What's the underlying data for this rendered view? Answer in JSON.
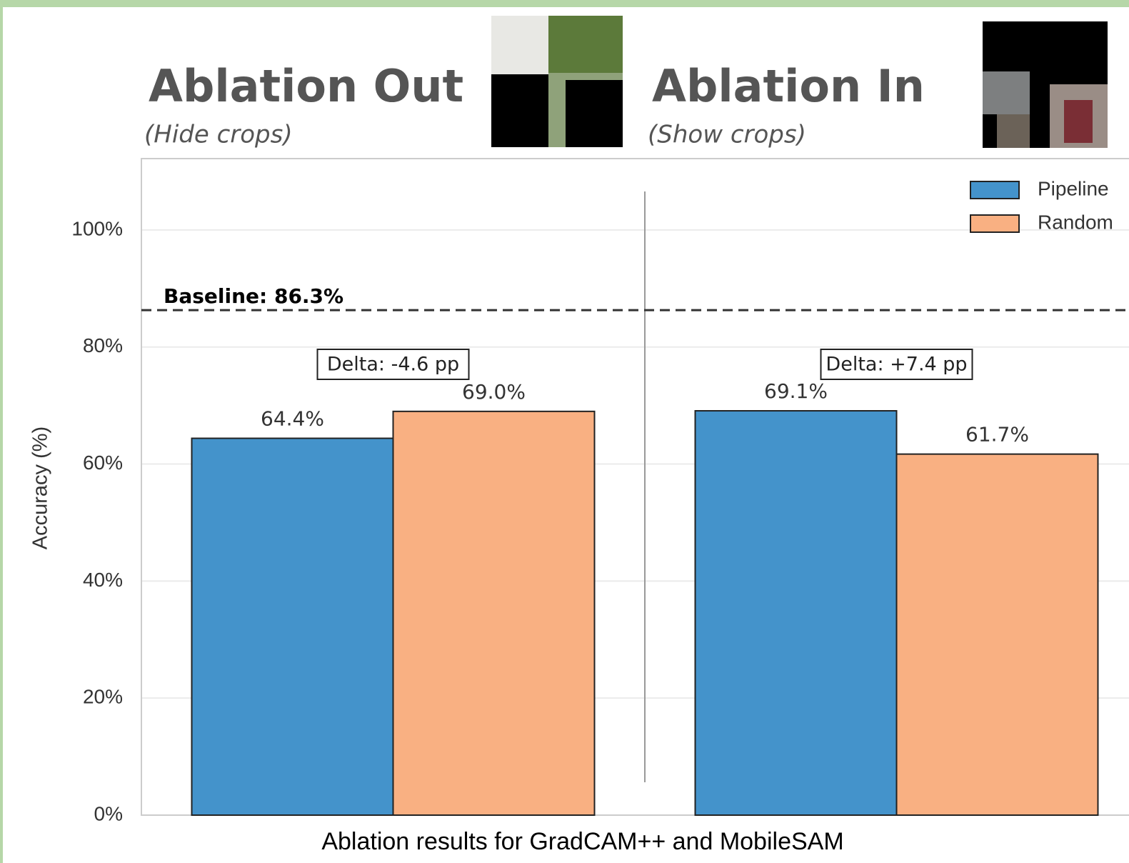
{
  "chart_data": {
    "type": "grouped_bar",
    "categories": [
      "Ablation Out",
      "Ablation In"
    ],
    "category_subtitles": [
      "(Hide crops)",
      "(Show crops)"
    ],
    "series": [
      {
        "name": "Pipeline",
        "color": "#4493cb",
        "values": [
          64.4,
          69.1
        ],
        "value_labels": [
          "64.4%",
          "69.1%"
        ]
      },
      {
        "name": "Random",
        "color": "#f9b082",
        "values": [
          69.0,
          61.7
        ],
        "value_labels": [
          "69.0%",
          "61.7%"
        ]
      }
    ],
    "annotations": [
      "Delta: -4.6 pp",
      "Delta: +7.4 pp"
    ],
    "baseline": {
      "value": 86.3,
      "label": "Baseline: 86.3%"
    },
    "y_label": "Accuracy (%)",
    "caption": "Ablation results for GradCAM++ and MobileSAM",
    "ylim": [
      0,
      112.2
    ],
    "yticks": [
      {
        "value": 0,
        "label": "0%"
      },
      {
        "value": 20,
        "label": "20%"
      },
      {
        "value": 40,
        "label": "40%"
      },
      {
        "value": 60,
        "label": "60%"
      },
      {
        "value": 80,
        "label": "80%"
      },
      {
        "value": 100,
        "label": "100%"
      }
    ],
    "grid": true,
    "legend": "upper right"
  }
}
